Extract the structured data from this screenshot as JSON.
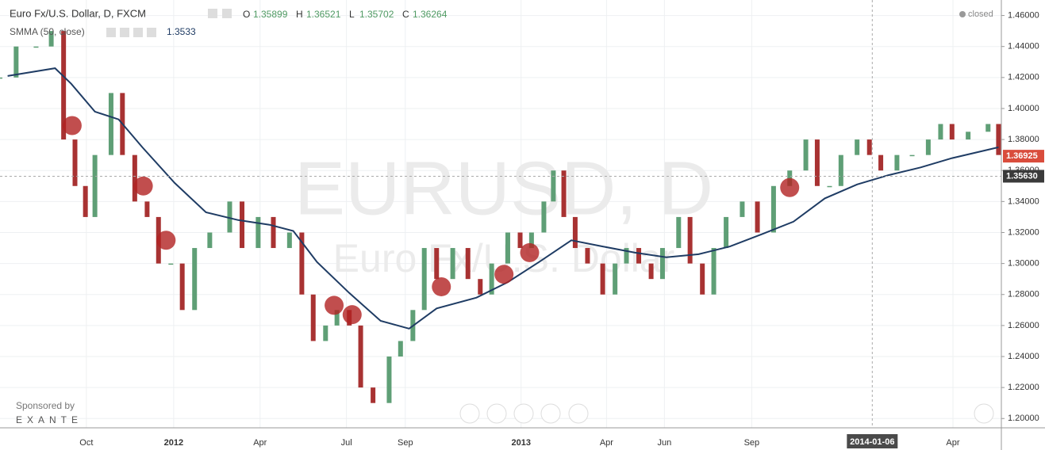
{
  "chart_data": {
    "type": "candlestick",
    "title": "Euro Fx/U.S. Dollar, D, FXCM",
    "ohlc": [
      {
        "key": "O",
        "value": 1.35899
      },
      {
        "key": "H",
        "value": 1.36521
      },
      {
        "key": "L",
        "value": 1.35702
      },
      {
        "key": "C",
        "value": 1.36264
      }
    ],
    "indicator": {
      "name": "SMMA (50, close)",
      "value": 1.3533
    },
    "status": "closed",
    "watermark": "EURUSD, D",
    "watermark_subtitle": "Euro Fx/U.S. Dollar",
    "sponsor": "Sponsored by",
    "sponsor_name": "EXANTE",
    "up_color": "#5f9f76",
    "down_color": "#a83232",
    "series": [
      {
        "name": "Close",
        "x": [
          -30,
          -13,
          8,
          24,
          37,
          49,
          60,
          70,
          87,
          99,
          112,
          125,
          137,
          150,
          162,
          175,
          191,
          212,
          225,
          242,
          258,
          275,
          288,
          300,
          313,
          325,
          338,
          350,
          363,
          380,
          392,
          405,
          417,
          430,
          447,
          463,
          476,
          488,
          505,
          518,
          530,
          543,
          553,
          564,
          576,
          589,
          605,
          618,
          630,
          643,
          656,
          668,
          685,
          697,
          710,
          722,
          735,
          752,
          768,
          785,
          802,
          819,
          831,
          844,
          856,
          873,
          886,
          898,
          915,
          931,
          948,
          961,
          973,
          990,
          1011,
          1022
        ],
        "values": [
          1.42,
          1.44,
          1.44,
          1.45,
          1.38,
          1.35,
          1.33,
          1.37,
          1.41,
          1.37,
          1.34,
          1.33,
          1.3,
          1.3,
          1.27,
          1.31,
          1.32,
          1.34,
          1.31,
          1.33,
          1.31,
          1.32,
          1.28,
          1.25,
          1.26,
          1.27,
          1.26,
          1.22,
          1.21,
          1.24,
          1.25,
          1.27,
          1.31,
          1.29,
          1.31,
          1.29,
          1.28,
          1.3,
          1.32,
          1.31,
          1.32,
          1.34,
          1.36,
          1.33,
          1.31,
          1.3,
          1.28,
          1.3,
          1.31,
          1.3,
          1.29,
          1.31,
          1.33,
          1.3,
          1.28,
          1.31,
          1.33,
          1.34,
          1.32,
          1.35,
          1.36,
          1.38,
          1.35,
          1.35,
          1.37,
          1.38,
          1.37,
          1.36,
          1.37,
          1.37,
          1.38,
          1.39,
          1.38,
          1.385,
          1.39,
          1.37
        ]
      },
      {
        "name": "SMMA",
        "color": "#1f3c64",
        "x": [
          -22,
          28,
          45,
          70,
          95,
          120,
          154,
          187,
          221,
          254,
          279,
          304,
          338,
          371,
          401,
          430,
          472,
          505,
          538,
          572,
          605,
          639,
          672,
          706,
          739,
          773,
          806,
          839,
          873,
          906,
          940,
          973,
          1022
        ],
        "values": [
          1.421,
          1.426,
          1.416,
          1.398,
          1.393,
          1.375,
          1.352,
          1.333,
          1.328,
          1.325,
          1.321,
          1.301,
          1.281,
          1.263,
          1.258,
          1.271,
          1.278,
          1.288,
          1.301,
          1.315,
          1.311,
          1.307,
          1.304,
          1.306,
          1.311,
          1.319,
          1.327,
          1.342,
          1.351,
          1.357,
          1.362,
          1.368,
          1.375
        ]
      },
      {
        "name": "Signals",
        "color": "#b22222",
        "x": [
          46,
          121,
          145,
          322,
          341,
          435,
          501,
          528,
          802
        ],
        "values": [
          1.389,
          1.35,
          1.315,
          1.273,
          1.267,
          1.285,
          1.293,
          1.307,
          1.349
        ]
      }
    ],
    "xlim": [
      -30,
      1025
    ],
    "xticks": [
      {
        "value": 61,
        "label": "Oct"
      },
      {
        "value": 153,
        "label": "2012"
      },
      {
        "value": 244,
        "label": "Apr"
      },
      {
        "value": 335,
        "label": "Jul"
      },
      {
        "value": 397,
        "label": "Sep"
      },
      {
        "value": 519,
        "label": "2013"
      },
      {
        "value": 609,
        "label": "Apr"
      },
      {
        "value": 670,
        "label": "Jun"
      },
      {
        "value": 762,
        "label": "Sep"
      },
      {
        "value": 974,
        "label": "Apr"
      }
    ],
    "ylim": [
      1.194,
      1.47
    ],
    "yticks": [
      {
        "value": 1.2,
        "label": "1.20000"
      },
      {
        "value": 1.22,
        "label": "1.22000"
      },
      {
        "value": 1.24,
        "label": "1.24000"
      },
      {
        "value": 1.26,
        "label": "1.26000"
      },
      {
        "value": 1.28,
        "label": "1.28000"
      },
      {
        "value": 1.3,
        "label": "1.30000"
      },
      {
        "value": 1.32,
        "label": "1.32000"
      },
      {
        "value": 1.34,
        "label": "1.34000"
      },
      {
        "value": 1.36,
        "label": "1.36000"
      },
      {
        "value": 1.38,
        "label": "1.38000"
      },
      {
        "value": 1.4,
        "label": "1.40000"
      },
      {
        "value": 1.42,
        "label": "1.42000"
      },
      {
        "value": 1.44,
        "label": "1.44000"
      },
      {
        "value": 1.46,
        "label": "1.46000"
      }
    ],
    "price_labels": [
      {
        "value": 1.36925,
        "label": "1.36925",
        "color": "#d94c3c"
      },
      {
        "value": 1.3563,
        "label": "1.35630",
        "color": "#3a3a3a"
      }
    ],
    "crosshair_x": {
      "value": 889,
      "label": "2014-01-06"
    },
    "grid": true
  }
}
